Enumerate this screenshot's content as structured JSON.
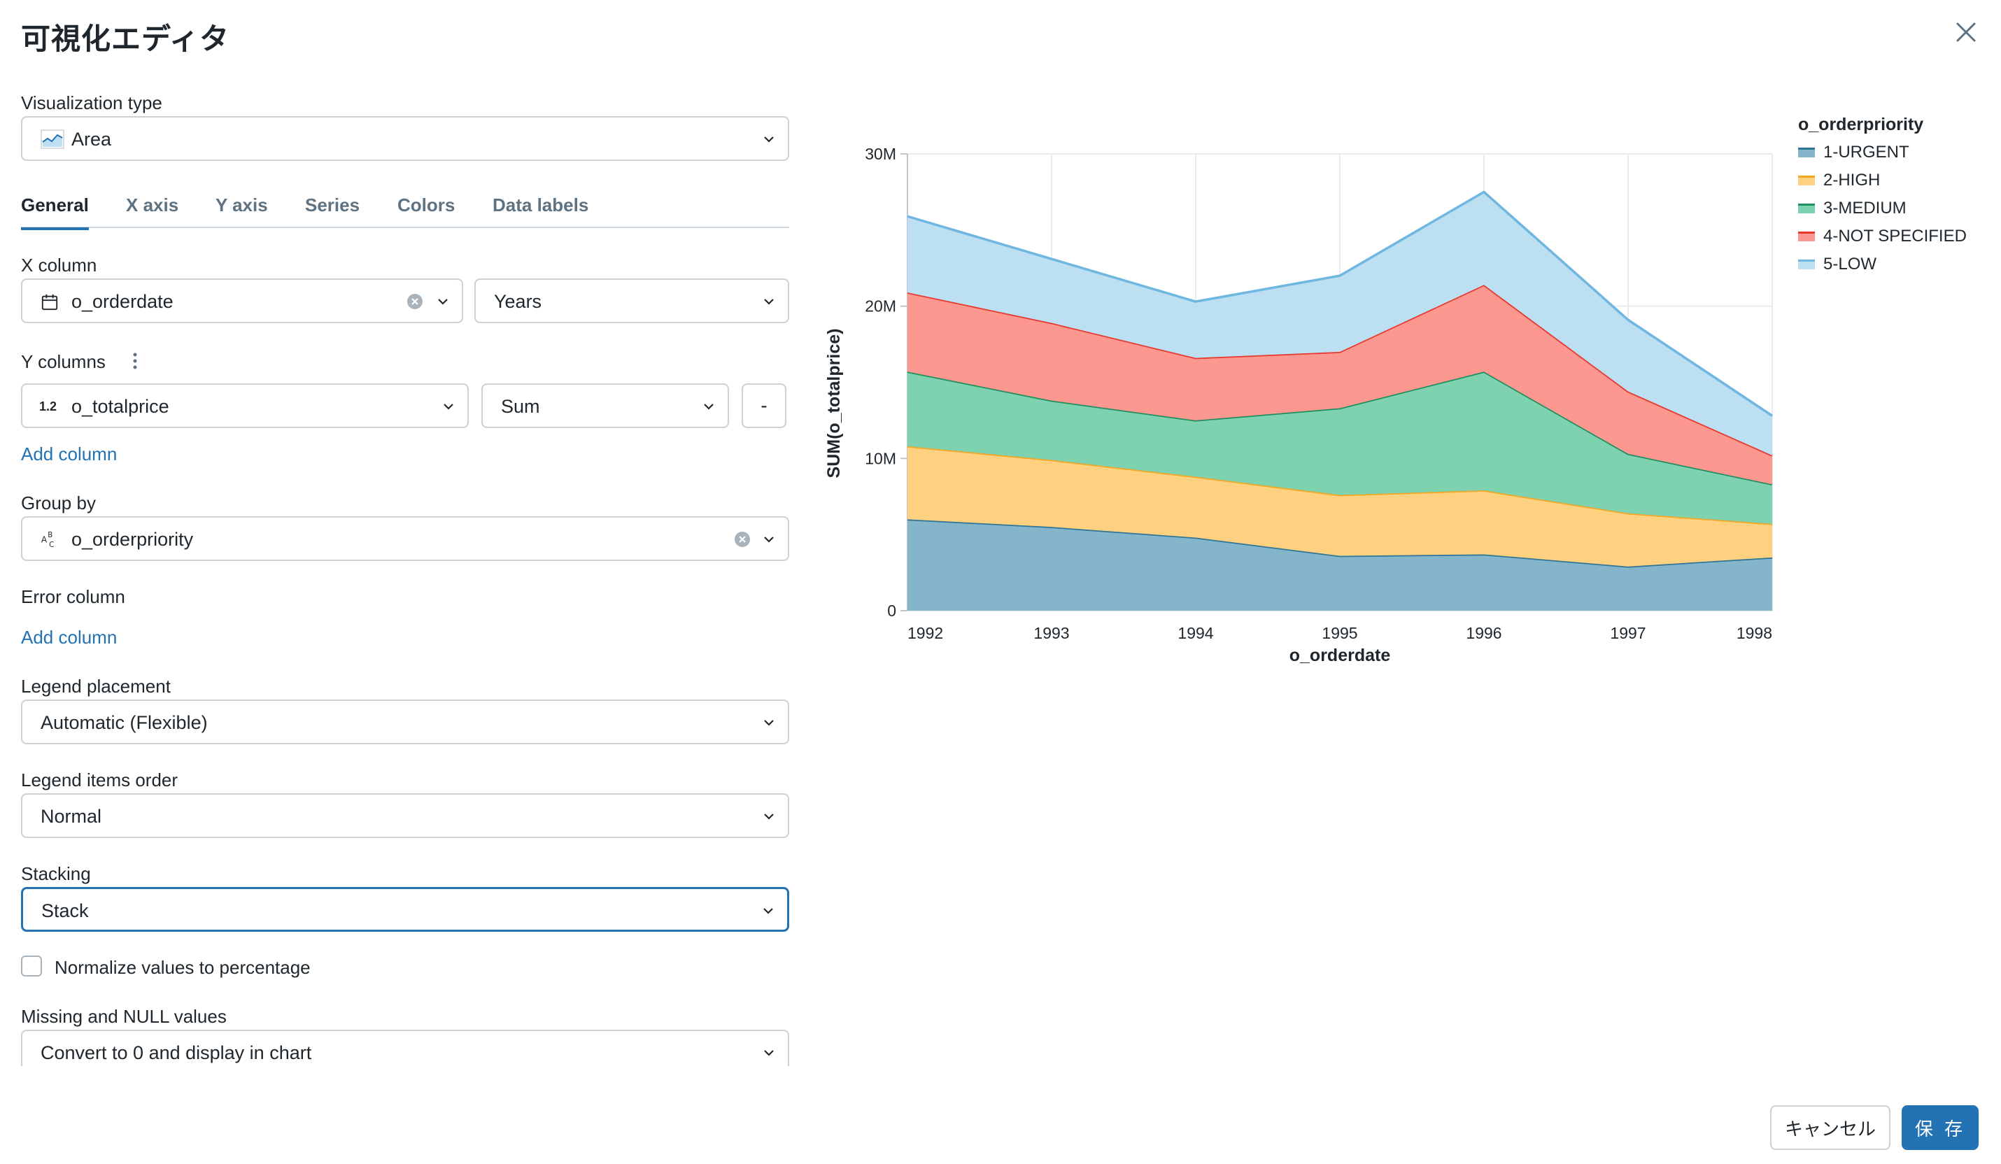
{
  "dialog": {
    "title": "可視化エディタ",
    "cancel_label": "キャンセル",
    "save_label": "保 存"
  },
  "viz_type": {
    "label": "Visualization type",
    "value": "Area"
  },
  "tabs": [
    {
      "label": "General",
      "active": true
    },
    {
      "label": "X axis"
    },
    {
      "label": "Y axis"
    },
    {
      "label": "Series"
    },
    {
      "label": "Colors"
    },
    {
      "label": "Data labels"
    }
  ],
  "x_column": {
    "label": "X column",
    "value": "o_orderdate",
    "grain": "Years"
  },
  "y_columns": {
    "label": "Y columns",
    "type_badge": "1.2",
    "value": "o_totalprice",
    "agg": "Sum",
    "remove_label": "-",
    "add_label": "Add column"
  },
  "group_by": {
    "label": "Group by",
    "value": "o_orderpriority"
  },
  "error_column": {
    "label": "Error column",
    "add_label": "Add column"
  },
  "legend_placement": {
    "label": "Legend placement",
    "value": "Automatic (Flexible)"
  },
  "legend_order": {
    "label": "Legend items order",
    "value": "Normal"
  },
  "stacking": {
    "label": "Stacking",
    "value": "Stack"
  },
  "normalize": {
    "label": "Normalize values to percentage",
    "checked": false
  },
  "missing_null": {
    "label": "Missing and NULL values",
    "value": "Convert to 0 and display in chart"
  },
  "chart_data": {
    "type": "area",
    "stacked": true,
    "x": [
      "1992",
      "1993",
      "1994",
      "1995",
      "1996",
      "1997",
      "1998"
    ],
    "xlabel": "o_orderdate",
    "ylabel": "SUM(o_totalprice)",
    "ylim": [
      0,
      30000000
    ],
    "yticks": [
      "0",
      "10M",
      "20M",
      "30M"
    ],
    "grid": true,
    "legend_title": "o_orderpriority",
    "legend_placement": "right",
    "series": [
      {
        "name": "1-URGENT",
        "color": "#2e7599",
        "fill": "#84b5ca",
        "values": [
          6000000,
          5500000,
          4800000,
          3600000,
          3700000,
          2900000,
          3500000
        ]
      },
      {
        "name": "2-HIGH",
        "color": "#f5a623",
        "fill": "#fdd17f",
        "values": [
          4800000,
          4400000,
          4000000,
          4000000,
          4200000,
          3500000,
          2200000
        ]
      },
      {
        "name": "3-MEDIUM",
        "color": "#1f8f5f",
        "fill": "#7ed2b0",
        "values": [
          4900000,
          3900000,
          3700000,
          5700000,
          7800000,
          3900000,
          2600000
        ]
      },
      {
        "name": "4-NOT SPECIFIED",
        "color": "#e8372c",
        "fill": "#fd9891",
        "values": [
          5200000,
          5100000,
          4100000,
          3700000,
          5700000,
          4100000,
          1900000
        ]
      },
      {
        "name": "5-LOW",
        "color": "#6fb7e0",
        "fill": "#bcdff1",
        "values": [
          5000000,
          4200000,
          3700000,
          5000000,
          6100000,
          4700000,
          2600000
        ]
      }
    ]
  }
}
